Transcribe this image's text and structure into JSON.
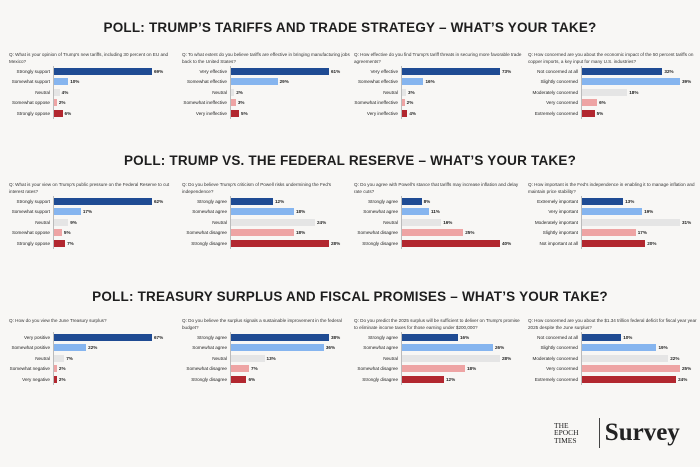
{
  "colors": [
    "#1f4b93",
    "#86b5ef",
    "#e5e5e5",
    "#eea4a4",
    "#b2272f"
  ],
  "logo": {
    "mark": "THE EPOCH TIMES",
    "label": "Survey"
  },
  "chart_data": [
    {
      "section": "POLL: TRUMP’S TARIFFS AND TRADE STRATEGY – WHAT’S YOUR TAKE?",
      "type": "bar",
      "panels": [
        {
          "question": "Q: What is your opinion of Trump's new tariffs, including 30 percent on EU and Mexico?",
          "categories": [
            "Strongly support",
            "Somewhat support",
            "Neutral",
            "Somewhat oppose",
            "Strongly oppose"
          ],
          "values": [
            69,
            10,
            4,
            2,
            6
          ]
        },
        {
          "question": "Q: To what extent do you believe tariffs are effective in bringing manufacturing jobs back to the United States?",
          "categories": [
            "Very effective",
            "Somewhat effective",
            "Neutral",
            "Somewhat ineffective",
            "Very ineffective"
          ],
          "values": [
            61,
            29,
            2,
            3,
            5
          ]
        },
        {
          "question": "Q: How effective do you find Trump's tariff threats in securing more favorable trade agreements?",
          "categories": [
            "Very effective",
            "Somewhat effective",
            "Neutral",
            "Somewhat ineffective",
            "Very ineffective"
          ],
          "values": [
            73,
            16,
            3,
            2,
            4
          ]
        },
        {
          "question": "Q: How concerned are you about the economic impact of the 50 percent tariffs on copper imports, a key input for many U.S. industries?",
          "categories": [
            "Not concerned at all",
            "Slightly concerned",
            "Moderately concerned",
            "Very concerned",
            "Extremely concerned"
          ],
          "values": [
            32,
            39,
            18,
            6,
            5
          ]
        }
      ]
    },
    {
      "section": "POLL: TRUMP VS. THE FEDERAL RESERVE – WHAT’S YOUR TAKE?",
      "type": "bar",
      "panels": [
        {
          "question": "Q: What is your view on Trump's public pressure on the Federal Reserve to cut interest rates?",
          "categories": [
            "Strongly support",
            "Somewhat support",
            "Neutral",
            "Somewhat oppose",
            "Strongly oppose"
          ],
          "values": [
            62,
            17,
            9,
            5,
            7
          ]
        },
        {
          "question": "Q: Do you believe Trump's criticism of Powell risks undermining the Fed's independence?",
          "categories": [
            "Strongly agree",
            "Somewhat agree",
            "Neutral",
            "Somewhat disagree",
            "Strongly disagree"
          ],
          "values": [
            12,
            18,
            24,
            18,
            28
          ]
        },
        {
          "question": "Q: Do you agree with Powell's stance that tariffs may increase inflation and delay rate cuts?",
          "categories": [
            "Strongly agree",
            "Somewhat agree",
            "Neutral",
            "Somewhat disagree",
            "Strongly disagree"
          ],
          "values": [
            8,
            11,
            16,
            25,
            40
          ]
        },
        {
          "question": "Q: How important is the Fed's independence in enabling it to manage inflation and maintain price stability?",
          "categories": [
            "Extremely important",
            "Very important",
            "Moderately important",
            "Slightly important",
            "Not important at all"
          ],
          "values": [
            13,
            19,
            31,
            17,
            20
          ]
        }
      ]
    },
    {
      "section": "POLL: TREASURY SURPLUS AND FISCAL PROMISES – WHAT’S YOUR TAKE?",
      "type": "bar",
      "panels": [
        {
          "question": "Q: How do you view the June Treasury surplus?",
          "categories": [
            "Very positive",
            "Somewhat positive",
            "Neutral",
            "Somewhat negative",
            "Very negative"
          ],
          "values": [
            67,
            22,
            7,
            2,
            2
          ]
        },
        {
          "question": "Q: Do you believe the surplus signals a sustainable improvement in the federal budget?",
          "categories": [
            "Strongly agree",
            "Somewhat agree",
            "Neutral",
            "Somewhat disagree",
            "Strongly disagree"
          ],
          "values": [
            38,
            36,
            13,
            7,
            6
          ]
        },
        {
          "question": "Q: Do you predict the 2025 surplus will be sufficient to deliver on Trump's promise to eliminate income taxes for those earning under $200,000?",
          "categories": [
            "Strongly agree",
            "Somewhat agree",
            "Neutral",
            "Somewhat disagree",
            "Strongly disagree"
          ],
          "values": [
            16,
            26,
            28,
            18,
            12
          ]
        },
        {
          "question": "Q: How concerned are you about the $1.34 trillion federal deficit for fiscal year year 2025 despite the June surplus?",
          "categories": [
            "Not concerned at all",
            "Slightly concerned",
            "Moderately concerned",
            "Very concerned",
            "Extremely concerned"
          ],
          "values": [
            10,
            19,
            22,
            25,
            24
          ]
        }
      ]
    }
  ]
}
